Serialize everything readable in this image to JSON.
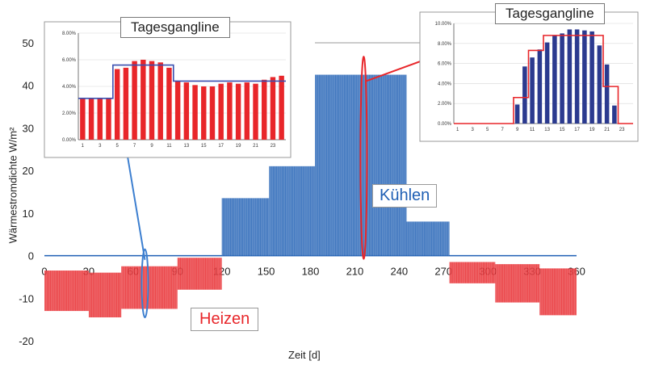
{
  "chart_data": [
    {
      "type": "bar",
      "role": "main",
      "xlabel": "Zeit [d]",
      "ylabel": "Wärmestromdichte W/m²",
      "xlim": [
        0,
        360
      ],
      "ylim": [
        -20,
        50
      ],
      "x_ticks": [
        0,
        30,
        60,
        90,
        120,
        150,
        180,
        210,
        240,
        270,
        300,
        330,
        360
      ],
      "y_ticks": [
        -20,
        -10,
        0,
        10,
        20,
        30,
        40,
        50
      ],
      "grid": false,
      "series": [
        {
          "name": "Heizen",
          "color": "#e8262a",
          "segments": [
            {
              "x_start": 0,
              "x_end": 30,
              "min": -13,
              "max": -3.5
            },
            {
              "x_start": 30,
              "x_end": 52,
              "min": -14.5,
              "max": -4
            },
            {
              "x_start": 52,
              "x_end": 90,
              "min": -12.5,
              "max": -2.5
            },
            {
              "x_start": 90,
              "x_end": 120,
              "min": -8,
              "max": -0.5
            },
            {
              "x_start": 274,
              "x_end": 305,
              "min": -6.5,
              "max": -1.5
            },
            {
              "x_start": 305,
              "x_end": 335,
              "min": -11,
              "max": -2
            },
            {
              "x_start": 335,
              "x_end": 360,
              "min": -14,
              "max": -3
            }
          ]
        },
        {
          "name": "Kühlen",
          "color": "#1f5fb4",
          "segments": [
            {
              "x_start": 120,
              "x_end": 152,
              "min": 0,
              "max": 13.5
            },
            {
              "x_start": 152,
              "x_end": 183,
              "min": 0,
              "max": 21
            },
            {
              "x_start": 183,
              "x_end": 245,
              "min": 0,
              "max": 42.5
            },
            {
              "x_start": 245,
              "x_end": 274,
              "min": 0,
              "max": 8
            }
          ]
        }
      ],
      "annotations": [
        "Heizen",
        "Kühlen"
      ],
      "highlight_days": [
        68,
        216
      ]
    },
    {
      "type": "bar",
      "role": "inset-left",
      "title": "Tagesgangline",
      "ylim": [
        0,
        8
      ],
      "y_ticks": [
        "0.00%",
        "2.00%",
        "4.00%",
        "6.00%",
        "8.00%"
      ],
      "x_ticks": [
        "1",
        "3",
        "5",
        "7",
        "9",
        "11",
        "13",
        "15",
        "17",
        "19",
        "21",
        "23"
      ],
      "categories": [
        1,
        2,
        3,
        4,
        5,
        6,
        7,
        8,
        9,
        10,
        11,
        12,
        13,
        14,
        15,
        16,
        17,
        18,
        19,
        20,
        21,
        22,
        23,
        24
      ],
      "values": [
        3.1,
        3.1,
        3.1,
        3.1,
        5.3,
        5.4,
        5.9,
        6.0,
        5.9,
        5.8,
        5.4,
        4.4,
        4.3,
        4.1,
        4.0,
        4.0,
        4.2,
        4.3,
        4.2,
        4.3,
        4.2,
        4.5,
        4.7,
        4.8
      ],
      "profile": [
        3.1,
        3.1,
        3.1,
        3.1,
        5.6,
        5.6,
        5.6,
        5.6,
        5.6,
        5.6,
        5.6,
        4.4,
        4.4,
        4.4,
        4.4,
        4.4,
        4.4,
        4.4,
        4.4,
        4.4,
        4.4,
        4.4,
        4.4,
        4.4
      ],
      "bar_color": "#e8262a",
      "line_color": "#3a4fb0"
    },
    {
      "type": "bar",
      "role": "inset-right",
      "title": "Tagesgangline",
      "ylim": [
        0,
        10
      ],
      "y_ticks": [
        "0.00%",
        "2.00%",
        "4.00%",
        "6.00%",
        "8.00%",
        "10.00%"
      ],
      "x_ticks": [
        "1",
        "3",
        "5",
        "7",
        "9",
        "11",
        "13",
        "15",
        "17",
        "19",
        "21",
        "23"
      ],
      "categories": [
        1,
        2,
        3,
        4,
        5,
        6,
        7,
        8,
        9,
        10,
        11,
        12,
        13,
        14,
        15,
        16,
        17,
        18,
        19,
        20,
        21,
        22,
        23,
        24
      ],
      "values": [
        0,
        0,
        0,
        0,
        0,
        0,
        0,
        0,
        1.9,
        5.7,
        6.6,
        7.4,
        8.1,
        8.8,
        9.0,
        9.4,
        9.4,
        9.3,
        9.2,
        7.8,
        5.9,
        1.8,
        0,
        0
      ],
      "profile": [
        0,
        0,
        0,
        0,
        0,
        0,
        0,
        0,
        2.6,
        2.6,
        7.3,
        7.3,
        8.8,
        8.8,
        8.8,
        8.8,
        8.8,
        8.8,
        8.8,
        8.8,
        3.7,
        3.7,
        0,
        0
      ],
      "bar_color": "#2b3a8f",
      "line_color": "#e8262a"
    }
  ]
}
